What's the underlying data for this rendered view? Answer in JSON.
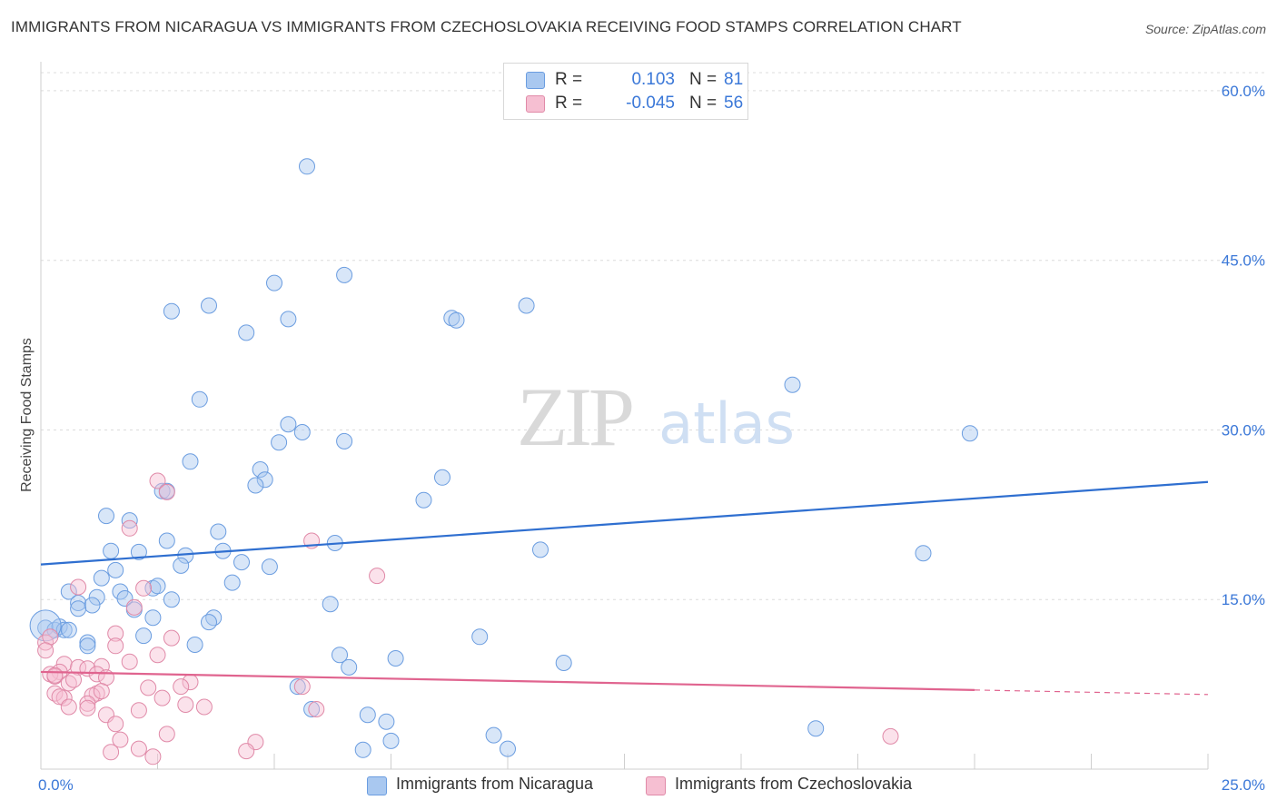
{
  "title": "IMMIGRANTS FROM NICARAGUA VS IMMIGRANTS FROM CZECHOSLOVAKIA RECEIVING FOOD STAMPS CORRELATION CHART",
  "source": "Source: ZipAtlas.com",
  "watermark": {
    "zip": "ZIP",
    "atlas": "atlas"
  },
  "legend": {
    "rows": [
      {
        "r_label": "R =",
        "r_value": "0.103",
        "n_label": "N =",
        "n_value": "81",
        "color": "#a9c8f0",
        "border": "#6b9de0"
      },
      {
        "r_label": "R =",
        "r_value": "-0.045",
        "n_label": "N =",
        "n_value": "56",
        "color": "#f6bfd2",
        "border": "#e08aa8"
      }
    ]
  },
  "bottom_legend": [
    {
      "label": "Immigrants from Nicaragua",
      "color": "#a9c8f0",
      "border": "#6b9de0"
    },
    {
      "label": "Immigrants from Czechoslovakia",
      "color": "#f6bfd2",
      "border": "#e08aa8"
    }
  ],
  "chart_data": {
    "type": "scatter",
    "title": "IMMIGRANTS FROM NICARAGUA VS IMMIGRANTS FROM CZECHOSLOVAKIA RECEIVING FOOD STAMPS CORRELATION CHART",
    "xlabel": "",
    "ylabel": "Receiving Food Stamps",
    "xlim": [
      0,
      25
    ],
    "ylim": [
      0,
      60
    ],
    "x_tick_labels": [
      "0.0%",
      "25.0%"
    ],
    "y_ticks": [
      15,
      30,
      45,
      60
    ],
    "y_tick_labels": [
      "15.0%",
      "30.0%",
      "45.0%",
      "60.0%"
    ],
    "grid": true,
    "series": [
      {
        "name": "Immigrants from Nicaragua",
        "color": "#6b9de0",
        "fill": "rgba(169,200,240,0.45)",
        "line_color": "#2f6fd0",
        "trend": [
          [
            0,
            18.1
          ],
          [
            25,
            25.4
          ]
        ],
        "points": [
          [
            5.7,
            53.3
          ],
          [
            6.5,
            43.7
          ],
          [
            5.0,
            43.0
          ],
          [
            3.6,
            41.0
          ],
          [
            2.8,
            40.5
          ],
          [
            5.3,
            39.8
          ],
          [
            8.8,
            39.9
          ],
          [
            8.9,
            39.7
          ],
          [
            10.4,
            41.0
          ],
          [
            4.4,
            38.6
          ],
          [
            3.4,
            32.7
          ],
          [
            16.1,
            34.0
          ],
          [
            5.3,
            30.5
          ],
          [
            5.6,
            29.8
          ],
          [
            5.1,
            28.9
          ],
          [
            6.5,
            29.0
          ],
          [
            19.9,
            29.7
          ],
          [
            3.2,
            27.2
          ],
          [
            4.7,
            26.5
          ],
          [
            4.8,
            25.6
          ],
          [
            4.6,
            25.1
          ],
          [
            8.6,
            25.8
          ],
          [
            2.6,
            24.6
          ],
          [
            2.7,
            24.6
          ],
          [
            8.2,
            23.8
          ],
          [
            1.4,
            22.4
          ],
          [
            1.9,
            22.0
          ],
          [
            3.8,
            21.0
          ],
          [
            2.7,
            20.2
          ],
          [
            6.3,
            20.0
          ],
          [
            1.5,
            19.3
          ],
          [
            2.1,
            19.2
          ],
          [
            3.1,
            18.9
          ],
          [
            3.9,
            19.3
          ],
          [
            4.3,
            18.3
          ],
          [
            4.9,
            17.9
          ],
          [
            10.7,
            19.4
          ],
          [
            18.9,
            19.1
          ],
          [
            3.0,
            18.0
          ],
          [
            1.6,
            17.6
          ],
          [
            1.3,
            16.9
          ],
          [
            2.4,
            16.0
          ],
          [
            2.5,
            16.2
          ],
          [
            4.1,
            16.5
          ],
          [
            0.6,
            15.7
          ],
          [
            1.7,
            15.7
          ],
          [
            1.2,
            15.2
          ],
          [
            1.8,
            15.1
          ],
          [
            0.8,
            14.7
          ],
          [
            1.1,
            14.5
          ],
          [
            0.8,
            14.2
          ],
          [
            2.0,
            14.1
          ],
          [
            2.8,
            15.0
          ],
          [
            6.2,
            14.6
          ],
          [
            2.4,
            13.4
          ],
          [
            3.7,
            13.4
          ],
          [
            3.6,
            13.0
          ],
          [
            0.1,
            12.5
          ],
          [
            0.3,
            12.3
          ],
          [
            0.4,
            12.6
          ],
          [
            0.5,
            12.3
          ],
          [
            0.6,
            12.3
          ],
          [
            2.2,
            11.8
          ],
          [
            9.4,
            11.7
          ],
          [
            1.0,
            11.2
          ],
          [
            1.0,
            10.9
          ],
          [
            3.3,
            11.0
          ],
          [
            6.4,
            10.1
          ],
          [
            7.6,
            9.8
          ],
          [
            6.6,
            9.0
          ],
          [
            11.2,
            9.4
          ],
          [
            5.5,
            7.3
          ],
          [
            5.8,
            5.3
          ],
          [
            7.0,
            4.8
          ],
          [
            7.4,
            4.2
          ],
          [
            16.6,
            3.6
          ],
          [
            9.7,
            3.0
          ],
          [
            7.5,
            2.5
          ],
          [
            10.0,
            1.8
          ],
          [
            6.9,
            1.7
          ],
          [
            0.1,
            12.7
          ]
        ]
      },
      {
        "name": "Immigrants from Czechoslovakia",
        "color": "#e08aa8",
        "fill": "rgba(246,191,210,0.45)",
        "line_color": "#e0648f",
        "trend": [
          [
            0,
            8.6
          ],
          [
            20,
            7.0
          ]
        ],
        "trend_dashed_to": [
          25,
          6.6
        ],
        "points": [
          [
            2.5,
            25.5
          ],
          [
            2.7,
            24.5
          ],
          [
            1.9,
            21.3
          ],
          [
            5.8,
            20.2
          ],
          [
            7.2,
            17.1
          ],
          [
            0.8,
            16.1
          ],
          [
            2.2,
            16.0
          ],
          [
            2.0,
            14.3
          ],
          [
            1.6,
            12.0
          ],
          [
            2.8,
            11.6
          ],
          [
            0.1,
            11.2
          ],
          [
            0.2,
            11.7
          ],
          [
            1.6,
            10.9
          ],
          [
            0.1,
            10.5
          ],
          [
            2.5,
            10.1
          ],
          [
            0.5,
            9.3
          ],
          [
            1.3,
            9.1
          ],
          [
            0.8,
            9.0
          ],
          [
            1.0,
            8.9
          ],
          [
            1.9,
            9.5
          ],
          [
            0.4,
            8.6
          ],
          [
            0.2,
            8.4
          ],
          [
            0.3,
            8.2
          ],
          [
            0.6,
            7.6
          ],
          [
            1.2,
            8.4
          ],
          [
            1.4,
            8.1
          ],
          [
            3.2,
            7.7
          ],
          [
            0.7,
            7.9
          ],
          [
            2.3,
            7.2
          ],
          [
            3.0,
            7.3
          ],
          [
            1.2,
            6.7
          ],
          [
            1.1,
            6.5
          ],
          [
            0.3,
            6.7
          ],
          [
            0.5,
            6.3
          ],
          [
            1.3,
            6.9
          ],
          [
            5.6,
            7.3
          ],
          [
            0.4,
            6.4
          ],
          [
            2.6,
            6.3
          ],
          [
            0.6,
            5.5
          ],
          [
            1.0,
            5.8
          ],
          [
            1.0,
            5.4
          ],
          [
            3.1,
            5.7
          ],
          [
            3.5,
            5.5
          ],
          [
            2.1,
            5.2
          ],
          [
            5.9,
            5.3
          ],
          [
            1.4,
            4.8
          ],
          [
            1.6,
            4.0
          ],
          [
            2.7,
            3.1
          ],
          [
            1.7,
            2.6
          ],
          [
            4.6,
            2.4
          ],
          [
            18.2,
            2.9
          ],
          [
            2.1,
            1.8
          ],
          [
            1.5,
            1.5
          ],
          [
            4.4,
            1.6
          ],
          [
            2.4,
            1.1
          ],
          [
            0.3,
            8.3
          ]
        ]
      }
    ]
  }
}
